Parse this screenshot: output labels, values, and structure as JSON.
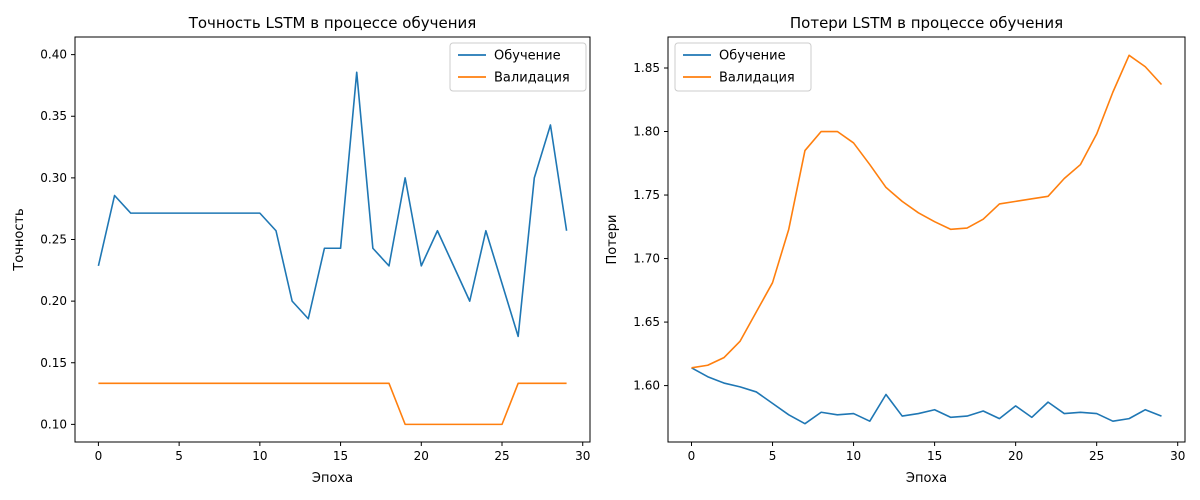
{
  "chart_data": [
    {
      "type": "line",
      "title": "Точность LSTM в процессе обучения",
      "xlabel": "Эпоха",
      "ylabel": "Точность",
      "xlim": [
        -1.45,
        30.45
      ],
      "ylim": [
        0.1,
        0.4
      ],
      "yview": [
        0.0857,
        0.4143
      ],
      "xticks": [
        0,
        5,
        10,
        15,
        20,
        25,
        30
      ],
      "yticks": [
        0.1,
        0.15,
        0.2,
        0.25,
        0.3,
        0.35,
        0.4
      ],
      "xtick_labels": [
        "0",
        "5",
        "10",
        "15",
        "20",
        "25",
        "30"
      ],
      "ytick_labels": [
        "0.10",
        "0.15",
        "0.20",
        "0.25",
        "0.30",
        "0.35",
        "0.40"
      ],
      "grid": false,
      "legend": "upper right",
      "x": [
        0,
        1,
        2,
        3,
        4,
        5,
        6,
        7,
        8,
        9,
        10,
        11,
        12,
        13,
        14,
        15,
        16,
        17,
        18,
        19,
        20,
        21,
        22,
        23,
        24,
        25,
        26,
        27,
        28,
        29
      ],
      "series": [
        {
          "name": "Обучение",
          "color": "#1f77b4",
          "values": [
            0.2286,
            0.2857,
            0.2714,
            0.2714,
            0.2714,
            0.2714,
            0.2714,
            0.2714,
            0.2714,
            0.2714,
            0.2714,
            0.2571,
            0.2,
            0.1857,
            0.2429,
            0.2429,
            0.3857,
            0.2429,
            0.2286,
            0.3,
            0.2286,
            0.2571,
            0.2286,
            0.2,
            0.2571,
            0.2143,
            0.1714,
            0.3,
            0.3429,
            0.2571
          ]
        },
        {
          "name": "Валидация",
          "color": "#ff7f0e",
          "values": [
            0.1333,
            0.1333,
            0.1333,
            0.1333,
            0.1333,
            0.1333,
            0.1333,
            0.1333,
            0.1333,
            0.1333,
            0.1333,
            0.1333,
            0.1333,
            0.1333,
            0.1333,
            0.1333,
            0.1333,
            0.1333,
            0.1333,
            0.1,
            0.1,
            0.1,
            0.1,
            0.1,
            0.1,
            0.1,
            0.1333,
            0.1333,
            0.1333,
            0.1333
          ]
        }
      ]
    },
    {
      "type": "line",
      "title": "Потери LSTM в процессе обучения",
      "xlabel": "Эпоха",
      "ylabel": "Потери",
      "xlim": [
        -1.45,
        30.45
      ],
      "ylim": [
        1.56,
        1.87
      ],
      "yview": [
        1.5556,
        1.8744
      ],
      "xticks": [
        0,
        5,
        10,
        15,
        20,
        25,
        30
      ],
      "yticks": [
        1.6,
        1.65,
        1.7,
        1.75,
        1.8,
        1.85
      ],
      "xtick_labels": [
        "0",
        "5",
        "10",
        "15",
        "20",
        "25",
        "30"
      ],
      "ytick_labels": [
        "1.60",
        "1.65",
        "1.70",
        "1.75",
        "1.80",
        "1.85"
      ],
      "grid": false,
      "legend": "upper left",
      "x": [
        0,
        1,
        2,
        3,
        4,
        5,
        6,
        7,
        8,
        9,
        10,
        11,
        12,
        13,
        14,
        15,
        16,
        17,
        18,
        19,
        20,
        21,
        22,
        23,
        24,
        25,
        26,
        27,
        28,
        29
      ],
      "series": [
        {
          "name": "Обучение",
          "color": "#1f77b4",
          "values": [
            1.614,
            1.607,
            1.602,
            1.599,
            1.595,
            1.586,
            1.577,
            1.57,
            1.579,
            1.577,
            1.578,
            1.572,
            1.593,
            1.576,
            1.578,
            1.581,
            1.575,
            1.576,
            1.58,
            1.574,
            1.584,
            1.575,
            1.587,
            1.578,
            1.579,
            1.578,
            1.572,
            1.574,
            1.581,
            1.576
          ]
        },
        {
          "name": "Валидация",
          "color": "#ff7f0e",
          "values": [
            1.614,
            1.616,
            1.622,
            1.635,
            1.658,
            1.681,
            1.723,
            1.785,
            1.8,
            1.8,
            1.791,
            1.774,
            1.756,
            1.745,
            1.736,
            1.729,
            1.723,
            1.724,
            1.731,
            1.743,
            1.745,
            1.747,
            1.749,
            1.763,
            1.774,
            1.798,
            1.831,
            1.86,
            1.851,
            1.837
          ]
        }
      ]
    }
  ]
}
